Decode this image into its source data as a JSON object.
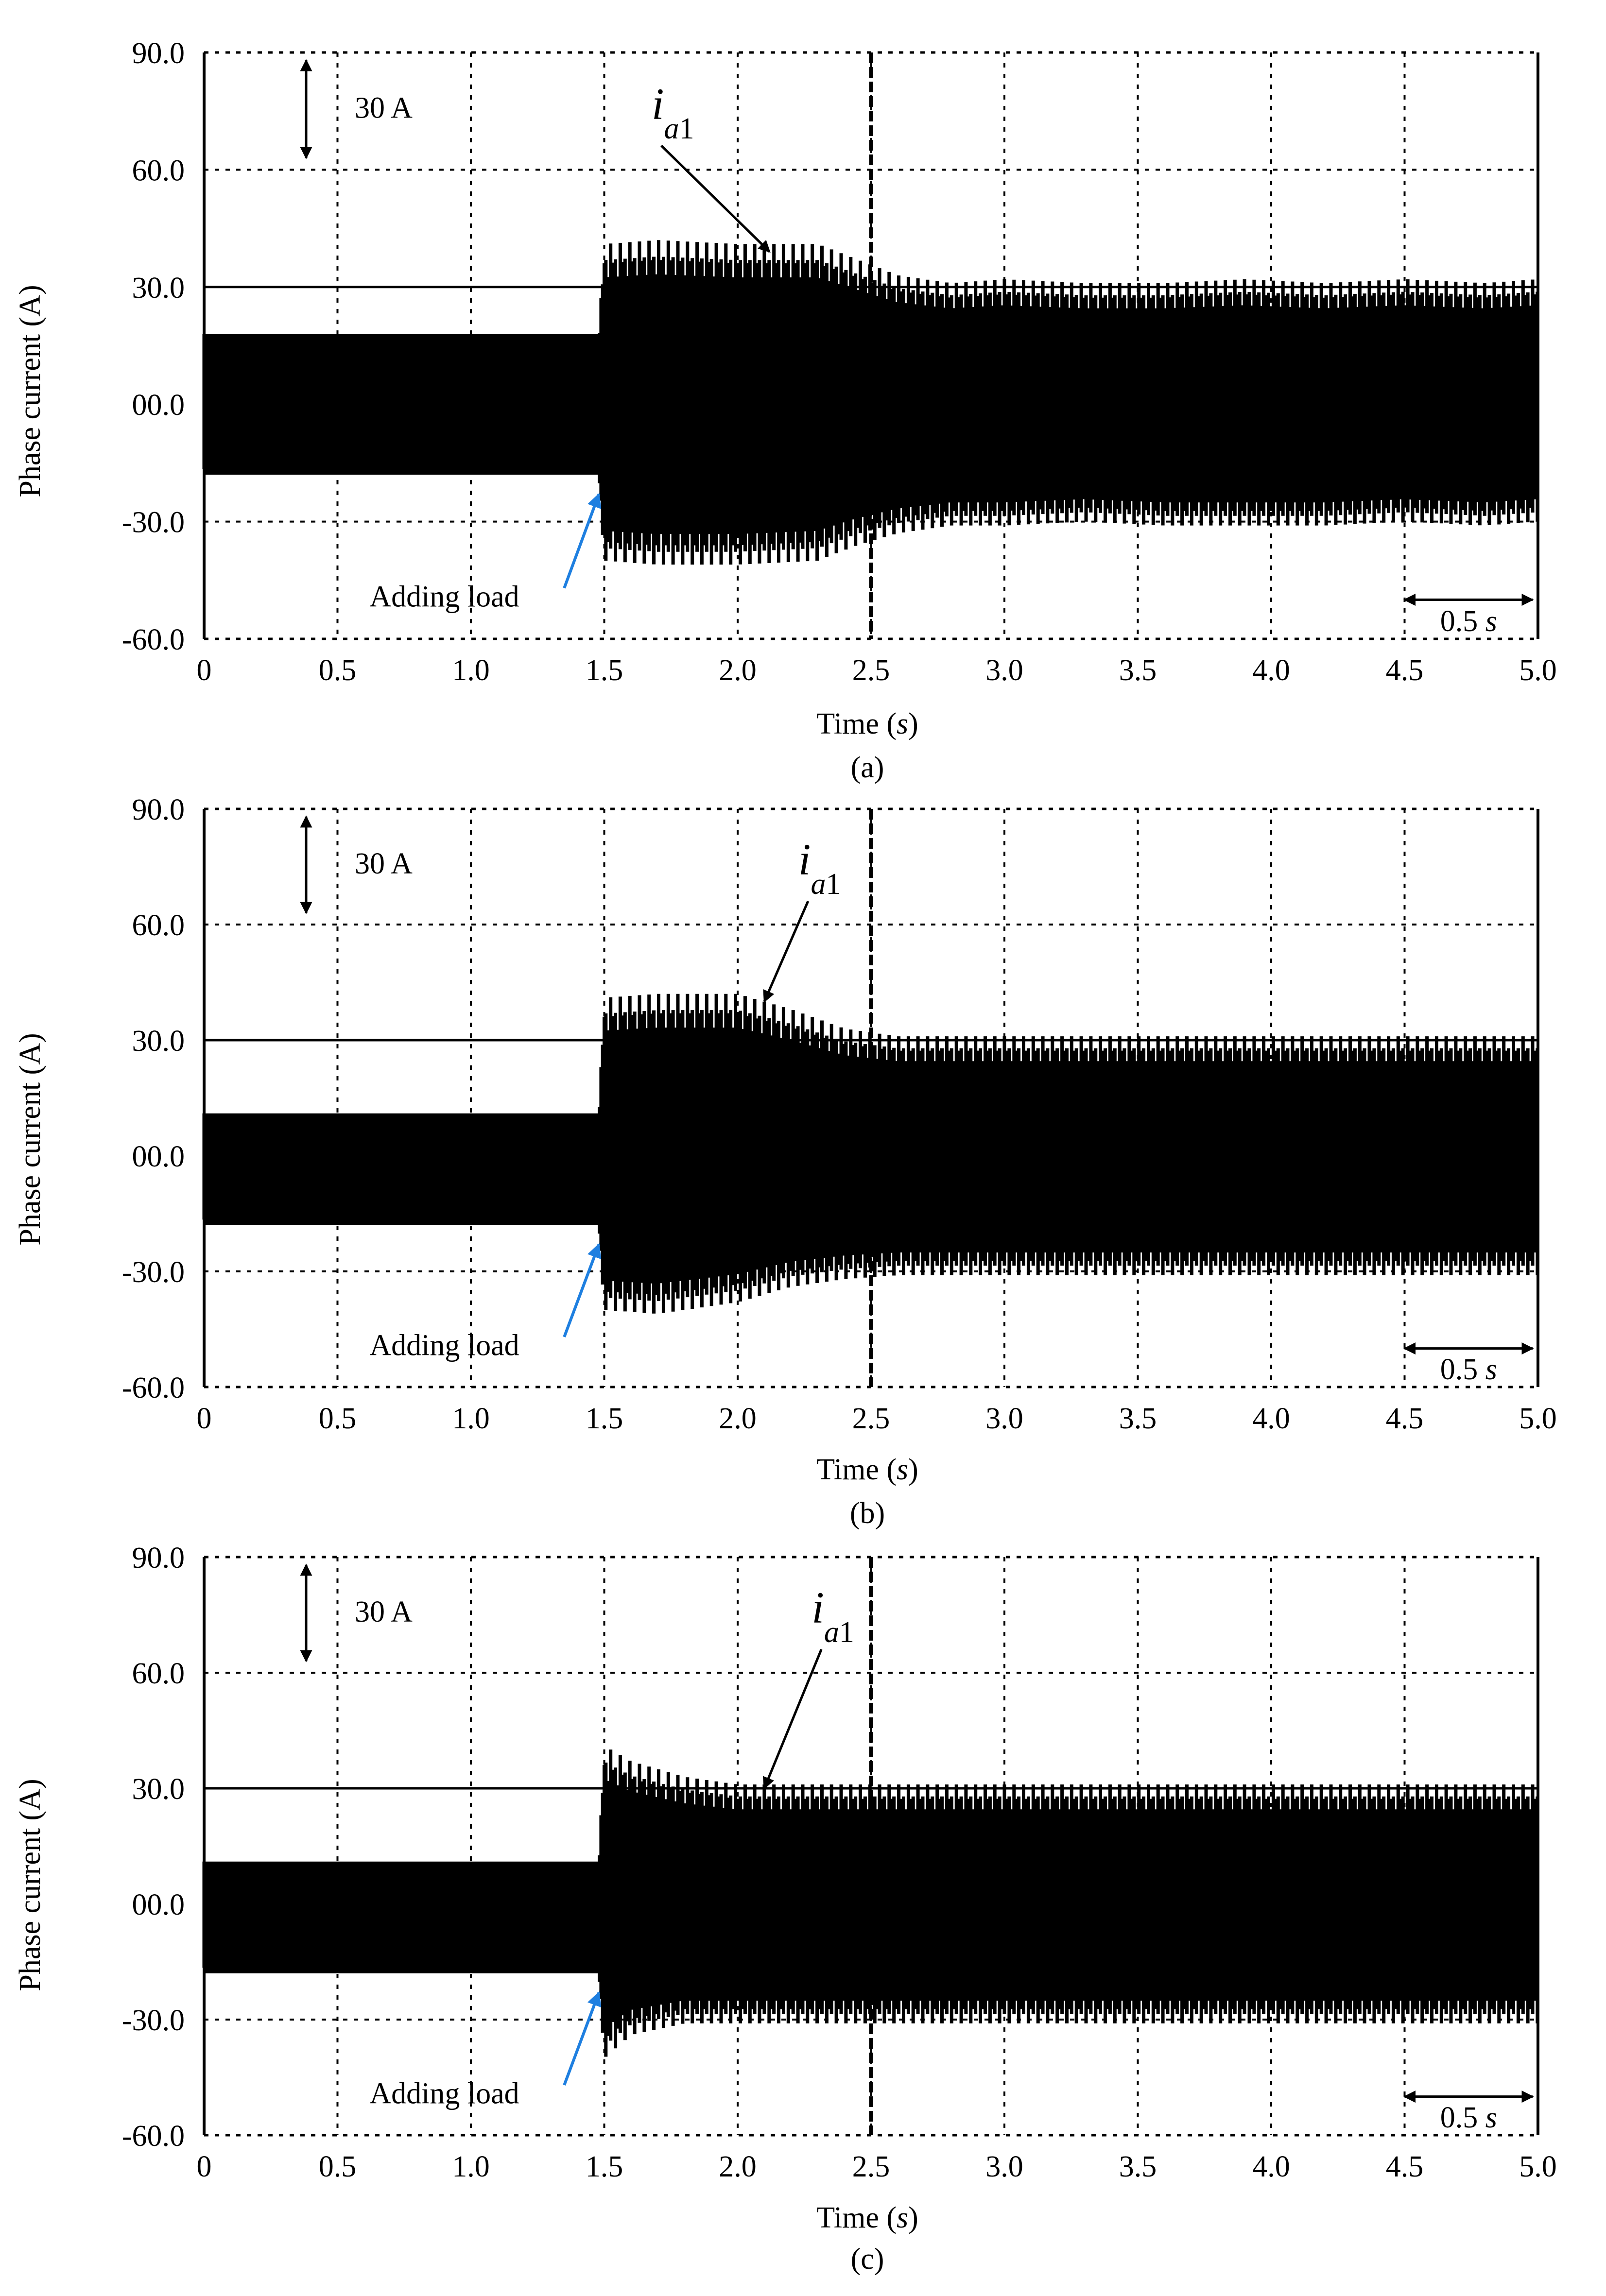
{
  "figure": {
    "panels": [
      "a",
      "b",
      "c"
    ]
  },
  "chart_data": [
    {
      "type": "line",
      "caption": "(a)",
      "xlabel": "Time",
      "xunit": "s",
      "ylabel": "Phase current  (A)",
      "xlim": [
        0,
        5.0
      ],
      "ylim": [
        -60,
        90
      ],
      "grid": true,
      "xticks": [
        "0",
        "0.5",
        "1.0",
        "1.5",
        "2.0",
        "2.5",
        "3.0",
        "3.5",
        "4.0",
        "4.5",
        "5.0"
      ],
      "yticks": [
        "90.0",
        "60.0",
        "30.0",
        "00.0",
        "-30.0",
        "-60.0"
      ],
      "reference_line": 30.0,
      "annotations": {
        "scale_label": "30 A",
        "time_scale_label": "0.5 s",
        "signal_label": "ia1",
        "event_label": "Adding load"
      },
      "series": [
        {
          "name": "ia1",
          "envelope": {
            "t": [
              0,
              1.48,
              1.5,
              1.7,
              2.0,
              2.3,
              2.45,
              2.6,
              2.8,
              3.0,
              3.3,
              3.6,
              3.9,
              4.2,
              4.5,
              4.8,
              5.0
            ],
            "max": [
              18,
              18,
              41,
              42,
              41,
              41,
              37,
              33,
              31,
              32,
              31,
              31,
              32,
              31,
              32,
              31,
              32
            ],
            "min": [
              -18,
              -18,
              -40,
              -41,
              -41,
              -40,
              -36,
              -33,
              -31,
              -31,
              -30,
              -31,
              -31,
              -31,
              -30,
              -31,
              -30
            ]
          }
        }
      ]
    },
    {
      "type": "line",
      "caption": "(b)",
      "xlabel": "Time",
      "xunit": "s",
      "ylabel": "Phase current  (A)",
      "xlim": [
        0,
        5.0
      ],
      "ylim": [
        -60,
        90
      ],
      "grid": true,
      "xticks": [
        "0",
        "0.5",
        "1.0",
        "1.5",
        "2.0",
        "2.5",
        "3.0",
        "3.5",
        "4.0",
        "4.5",
        "5.0"
      ],
      "yticks": [
        "90.0",
        "60.0",
        "30.0",
        "00.0",
        "-30.0",
        "-60.0"
      ],
      "reference_line": 30.0,
      "annotations": {
        "scale_label": "30 A",
        "time_scale_label": "0.5 s",
        "signal_label": "ia1",
        "event_label": "Adding load"
      },
      "series": [
        {
          "name": "ia1",
          "envelope": {
            "t": [
              0,
              1.48,
              1.5,
              1.7,
              2.0,
              2.2,
              2.4,
              2.6,
              3.0,
              3.5,
              4.0,
              4.5,
              5.0
            ],
            "max": [
              11,
              11,
              41,
              42,
              42,
              38,
              33,
              31,
              31,
              31,
              31,
              31,
              31
            ],
            "min": [
              -18,
              -18,
              -40,
              -41,
              -38,
              -34,
              -32,
              -31,
              -31,
              -31,
              -31,
              -31,
              -31
            ]
          }
        }
      ]
    },
    {
      "type": "line",
      "caption": "(c)",
      "xlabel": "Time",
      "xunit": "s",
      "ylabel": "Phase current  (A)",
      "xlim": [
        0,
        5.0
      ],
      "ylim": [
        -60,
        90
      ],
      "grid": true,
      "xticks": [
        "0",
        "0.5",
        "1.0",
        "1.5",
        "2.0",
        "2.5",
        "3.0",
        "3.5",
        "4.0",
        "4.5",
        "5.0"
      ],
      "yticks": [
        "90.0",
        "60.0",
        "30.0",
        "00.0",
        "-30.0",
        "-60.0"
      ],
      "reference_line": 30.0,
      "annotations": {
        "scale_label": "30 A",
        "time_scale_label": "0.5 s",
        "signal_label": "ia1",
        "event_label": "Adding load"
      },
      "series": [
        {
          "name": "ia1",
          "envelope": {
            "t": [
              0,
              1.48,
              1.5,
              1.6,
              1.8,
              2.0,
              2.3,
              2.6,
              3.0,
              3.5,
              4.0,
              4.5,
              5.0
            ],
            "max": [
              11,
              11,
              41,
              37,
              33,
              31,
              31,
              31,
              31,
              31,
              31,
              31,
              31
            ],
            "min": [
              -18,
              -18,
              -40,
              -34,
              -31,
              -31,
              -31,
              -31,
              -31,
              -31,
              -31,
              -31,
              -31
            ]
          }
        }
      ]
    }
  ]
}
